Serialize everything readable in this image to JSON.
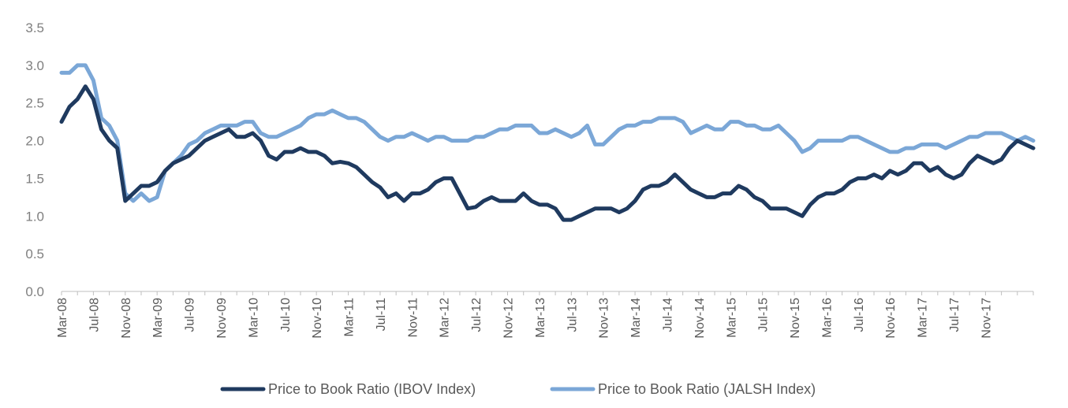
{
  "chart_data": {
    "type": "line",
    "title": "",
    "xlabel": "",
    "ylabel": "",
    "ylim": [
      0,
      3.5
    ],
    "yticks": [
      "0.0",
      "0.5",
      "1.0",
      "1.5",
      "2.0",
      "2.5",
      "3.0",
      "3.5"
    ],
    "xticks": [
      "Mar-08",
      "Jul-08",
      "Nov-08",
      "Mar-09",
      "Jul-09",
      "Nov-09",
      "Mar-10",
      "Jul-10",
      "Nov-10",
      "Mar-11",
      "Jul-11",
      "Nov-11",
      "Mar-12",
      "Jul-12",
      "Nov-12",
      "Mar-13",
      "Jul-13",
      "Nov-13",
      "Mar-14",
      "Jul-14",
      "Nov-14",
      "Mar-15",
      "Jul-15",
      "Nov-15",
      "Mar-16",
      "Jul-16",
      "Nov-16",
      "Mar-17",
      "Jul-17",
      "Nov-17"
    ],
    "xlim": [
      "Mar-08",
      "May-18"
    ],
    "grid": false,
    "legend_position": "bottom",
    "series": [
      {
        "name": "Price to Book Ratio (IBOV Index)",
        "color": "#1f3a5f",
        "points": [
          [
            "Mar-08",
            2.25
          ],
          [
            "Apr-08",
            2.45
          ],
          [
            "May-08",
            2.55
          ],
          [
            "Jun-08",
            2.72
          ],
          [
            "Jul-08",
            2.55
          ],
          [
            "Aug-08",
            2.15
          ],
          [
            "Sep-08",
            2.0
          ],
          [
            "Oct-08",
            1.9
          ],
          [
            "Nov-08",
            1.2
          ],
          [
            "Dec-08",
            1.3
          ],
          [
            "Jan-09",
            1.4
          ],
          [
            "Feb-09",
            1.4
          ],
          [
            "Mar-09",
            1.45
          ],
          [
            "Apr-09",
            1.6
          ],
          [
            "May-09",
            1.7
          ],
          [
            "Jun-09",
            1.75
          ],
          [
            "Jul-09",
            1.8
          ],
          [
            "Aug-09",
            1.9
          ],
          [
            "Sep-09",
            2.0
          ],
          [
            "Oct-09",
            2.05
          ],
          [
            "Nov-09",
            2.1
          ],
          [
            "Dec-09",
            2.15
          ],
          [
            "Jan-10",
            2.05
          ],
          [
            "Feb-10",
            2.05
          ],
          [
            "Mar-10",
            2.1
          ],
          [
            "Apr-10",
            2.0
          ],
          [
            "May-10",
            1.8
          ],
          [
            "Jun-10",
            1.75
          ],
          [
            "Jul-10",
            1.85
          ],
          [
            "Aug-10",
            1.85
          ],
          [
            "Sep-10",
            1.9
          ],
          [
            "Oct-10",
            1.85
          ],
          [
            "Nov-10",
            1.85
          ],
          [
            "Dec-10",
            1.8
          ],
          [
            "Jan-11",
            1.7
          ],
          [
            "Feb-11",
            1.72
          ],
          [
            "Mar-11",
            1.7
          ],
          [
            "Apr-11",
            1.65
          ],
          [
            "May-11",
            1.55
          ],
          [
            "Jun-11",
            1.45
          ],
          [
            "Jul-11",
            1.38
          ],
          [
            "Aug-11",
            1.25
          ],
          [
            "Sep-11",
            1.3
          ],
          [
            "Oct-11",
            1.2
          ],
          [
            "Nov-11",
            1.3
          ],
          [
            "Dec-11",
            1.3
          ],
          [
            "Jan-12",
            1.35
          ],
          [
            "Feb-12",
            1.45
          ],
          [
            "Mar-12",
            1.5
          ],
          [
            "Apr-12",
            1.5
          ],
          [
            "May-12",
            1.3
          ],
          [
            "Jun-12",
            1.1
          ],
          [
            "Jul-12",
            1.12
          ],
          [
            "Aug-12",
            1.2
          ],
          [
            "Sep-12",
            1.25
          ],
          [
            "Oct-12",
            1.2
          ],
          [
            "Nov-12",
            1.2
          ],
          [
            "Dec-12",
            1.2
          ],
          [
            "Jan-13",
            1.3
          ],
          [
            "Feb-13",
            1.2
          ],
          [
            "Mar-13",
            1.15
          ],
          [
            "Apr-13",
            1.15
          ],
          [
            "May-13",
            1.1
          ],
          [
            "Jun-13",
            0.95
          ],
          [
            "Jul-13",
            0.95
          ],
          [
            "Aug-13",
            1.0
          ],
          [
            "Sep-13",
            1.05
          ],
          [
            "Oct-13",
            1.1
          ],
          [
            "Nov-13",
            1.1
          ],
          [
            "Dec-13",
            1.1
          ],
          [
            "Jan-14",
            1.05
          ],
          [
            "Feb-14",
            1.1
          ],
          [
            "Mar-14",
            1.2
          ],
          [
            "Apr-14",
            1.35
          ],
          [
            "May-14",
            1.4
          ],
          [
            "Jun-14",
            1.4
          ],
          [
            "Jul-14",
            1.45
          ],
          [
            "Aug-14",
            1.55
          ],
          [
            "Sep-14",
            1.45
          ],
          [
            "Oct-14",
            1.35
          ],
          [
            "Nov-14",
            1.3
          ],
          [
            "Dec-14",
            1.25
          ],
          [
            "Jan-15",
            1.25
          ],
          [
            "Feb-15",
            1.3
          ],
          [
            "Mar-15",
            1.3
          ],
          [
            "Apr-15",
            1.4
          ],
          [
            "May-15",
            1.35
          ],
          [
            "Jun-15",
            1.25
          ],
          [
            "Jul-15",
            1.2
          ],
          [
            "Aug-15",
            1.1
          ],
          [
            "Sep-15",
            1.1
          ],
          [
            "Oct-15",
            1.1
          ],
          [
            "Nov-15",
            1.05
          ],
          [
            "Dec-15",
            1.0
          ],
          [
            "Jan-16",
            1.15
          ],
          [
            "Feb-16",
            1.25
          ],
          [
            "Mar-16",
            1.3
          ],
          [
            "Apr-16",
            1.3
          ],
          [
            "May-16",
            1.35
          ],
          [
            "Jun-16",
            1.45
          ],
          [
            "Jul-16",
            1.5
          ],
          [
            "Aug-16",
            1.5
          ],
          [
            "Sep-16",
            1.55
          ],
          [
            "Oct-16",
            1.5
          ],
          [
            "Nov-16",
            1.6
          ],
          [
            "Dec-16",
            1.55
          ],
          [
            "Jan-17",
            1.6
          ],
          [
            "Feb-17",
            1.7
          ],
          [
            "Mar-17",
            1.7
          ],
          [
            "Apr-17",
            1.6
          ],
          [
            "May-17",
            1.65
          ],
          [
            "Jun-17",
            1.55
          ],
          [
            "Jul-17",
            1.5
          ],
          [
            "Aug-17",
            1.55
          ],
          [
            "Sep-17",
            1.7
          ],
          [
            "Oct-17",
            1.8
          ],
          [
            "Nov-17",
            1.75
          ],
          [
            "Dec-17",
            1.7
          ],
          [
            "Jan-18",
            1.75
          ],
          [
            "Feb-18",
            1.9
          ],
          [
            "Mar-18",
            2.0
          ],
          [
            "Apr-18",
            1.95
          ],
          [
            "May-18",
            1.9
          ]
        ]
      },
      {
        "name": "Price to Book Ratio (JALSH Index)",
        "color": "#7ba7d7",
        "points": [
          [
            "Mar-08",
            2.9
          ],
          [
            "Apr-08",
            2.9
          ],
          [
            "May-08",
            3.0
          ],
          [
            "Jun-08",
            3.0
          ],
          [
            "Jul-08",
            2.8
          ],
          [
            "Aug-08",
            2.3
          ],
          [
            "Sep-08",
            2.2
          ],
          [
            "Oct-08",
            2.0
          ],
          [
            "Nov-08",
            1.3
          ],
          [
            "Dec-08",
            1.2
          ],
          [
            "Jan-09",
            1.3
          ],
          [
            "Feb-09",
            1.2
          ],
          [
            "Mar-09",
            1.25
          ],
          [
            "Apr-09",
            1.6
          ],
          [
            "May-09",
            1.7
          ],
          [
            "Jun-09",
            1.8
          ],
          [
            "Jul-09",
            1.95
          ],
          [
            "Aug-09",
            2.0
          ],
          [
            "Sep-09",
            2.1
          ],
          [
            "Oct-09",
            2.15
          ],
          [
            "Nov-09",
            2.2
          ],
          [
            "Dec-09",
            2.2
          ],
          [
            "Jan-10",
            2.2
          ],
          [
            "Feb-10",
            2.25
          ],
          [
            "Mar-10",
            2.25
          ],
          [
            "Apr-10",
            2.1
          ],
          [
            "May-10",
            2.05
          ],
          [
            "Jun-10",
            2.05
          ],
          [
            "Jul-10",
            2.1
          ],
          [
            "Aug-10",
            2.15
          ],
          [
            "Sep-10",
            2.2
          ],
          [
            "Oct-10",
            2.3
          ],
          [
            "Nov-10",
            2.35
          ],
          [
            "Dec-10",
            2.35
          ],
          [
            "Jan-11",
            2.4
          ],
          [
            "Feb-11",
            2.35
          ],
          [
            "Mar-11",
            2.3
          ],
          [
            "Apr-11",
            2.3
          ],
          [
            "May-11",
            2.25
          ],
          [
            "Jun-11",
            2.15
          ],
          [
            "Jul-11",
            2.05
          ],
          [
            "Aug-11",
            2.0
          ],
          [
            "Sep-11",
            2.05
          ],
          [
            "Oct-11",
            2.05
          ],
          [
            "Nov-11",
            2.1
          ],
          [
            "Dec-11",
            2.05
          ],
          [
            "Jan-12",
            2.0
          ],
          [
            "Feb-12",
            2.05
          ],
          [
            "Mar-12",
            2.05
          ],
          [
            "Apr-12",
            2.0
          ],
          [
            "May-12",
            2.0
          ],
          [
            "Jun-12",
            2.0
          ],
          [
            "Jul-12",
            2.05
          ],
          [
            "Aug-12",
            2.05
          ],
          [
            "Sep-12",
            2.1
          ],
          [
            "Oct-12",
            2.15
          ],
          [
            "Nov-12",
            2.15
          ],
          [
            "Dec-12",
            2.2
          ],
          [
            "Jan-13",
            2.2
          ],
          [
            "Feb-13",
            2.2
          ],
          [
            "Mar-13",
            2.1
          ],
          [
            "Apr-13",
            2.1
          ],
          [
            "May-13",
            2.15
          ],
          [
            "Jun-13",
            2.1
          ],
          [
            "Jul-13",
            2.05
          ],
          [
            "Aug-13",
            2.1
          ],
          [
            "Sep-13",
            2.2
          ],
          [
            "Oct-13",
            1.95
          ],
          [
            "Nov-13",
            1.95
          ],
          [
            "Dec-13",
            2.05
          ],
          [
            "Jan-14",
            2.15
          ],
          [
            "Feb-14",
            2.2
          ],
          [
            "Mar-14",
            2.2
          ],
          [
            "Apr-14",
            2.25
          ],
          [
            "May-14",
            2.25
          ],
          [
            "Jun-14",
            2.3
          ],
          [
            "Jul-14",
            2.3
          ],
          [
            "Aug-14",
            2.3
          ],
          [
            "Sep-14",
            2.25
          ],
          [
            "Oct-14",
            2.1
          ],
          [
            "Nov-14",
            2.15
          ],
          [
            "Dec-14",
            2.2
          ],
          [
            "Jan-15",
            2.15
          ],
          [
            "Feb-15",
            2.15
          ],
          [
            "Mar-15",
            2.25
          ],
          [
            "Apr-15",
            2.25
          ],
          [
            "May-15",
            2.2
          ],
          [
            "Jun-15",
            2.2
          ],
          [
            "Jul-15",
            2.15
          ],
          [
            "Aug-15",
            2.15
          ],
          [
            "Sep-15",
            2.2
          ],
          [
            "Oct-15",
            2.1
          ],
          [
            "Nov-15",
            2.0
          ],
          [
            "Dec-15",
            1.85
          ],
          [
            "Jan-16",
            1.9
          ],
          [
            "Feb-16",
            2.0
          ],
          [
            "Mar-16",
            2.0
          ],
          [
            "Apr-16",
            2.0
          ],
          [
            "May-16",
            2.0
          ],
          [
            "Jun-16",
            2.05
          ],
          [
            "Jul-16",
            2.05
          ],
          [
            "Aug-16",
            2.0
          ],
          [
            "Sep-16",
            1.95
          ],
          [
            "Oct-16",
            1.9
          ],
          [
            "Nov-16",
            1.85
          ],
          [
            "Dec-16",
            1.85
          ],
          [
            "Jan-17",
            1.9
          ],
          [
            "Feb-17",
            1.9
          ],
          [
            "Mar-17",
            1.95
          ],
          [
            "Apr-17",
            1.95
          ],
          [
            "May-17",
            1.95
          ],
          [
            "Jun-17",
            1.9
          ],
          [
            "Jul-17",
            1.95
          ],
          [
            "Aug-17",
            2.0
          ],
          [
            "Sep-17",
            2.05
          ],
          [
            "Oct-17",
            2.05
          ],
          [
            "Nov-17",
            2.1
          ],
          [
            "Dec-17",
            2.1
          ],
          [
            "Jan-18",
            2.1
          ],
          [
            "Feb-18",
            2.05
          ],
          [
            "Mar-18",
            2.0
          ],
          [
            "Apr-18",
            2.05
          ],
          [
            "May-18",
            2.0
          ]
        ]
      }
    ]
  }
}
